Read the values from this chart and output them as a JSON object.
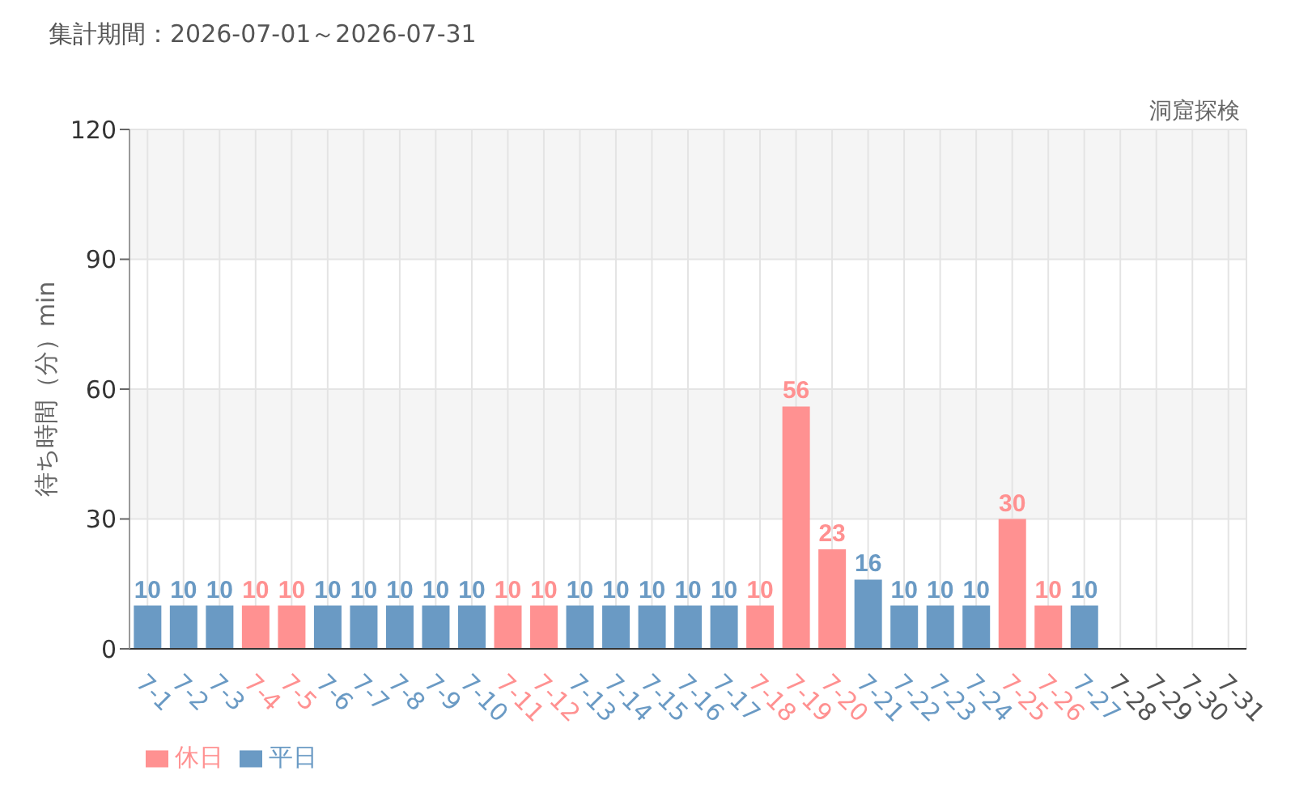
{
  "chart_data": {
    "type": "bar",
    "title": "集計期間：2026-07-01～2026-07-31",
    "subtitle": "洞窟探検",
    "ylabel": "待ち時間（分）min",
    "categories": [
      "7-1",
      "7-2",
      "7-3",
      "7-4",
      "7-5",
      "7-6",
      "7-7",
      "7-8",
      "7-9",
      "7-10",
      "7-11",
      "7-12",
      "7-13",
      "7-14",
      "7-15",
      "7-16",
      "7-17",
      "7-18",
      "7-19",
      "7-20",
      "7-21",
      "7-22",
      "7-23",
      "7-24",
      "7-25",
      "7-26",
      "7-27",
      "7-28",
      "7-29",
      "7-30",
      "7-31"
    ],
    "series": [
      {
        "name": "平日",
        "color": "#6a9ac4",
        "values": [
          10,
          10,
          10,
          null,
          null,
          10,
          10,
          10,
          10,
          10,
          null,
          null,
          10,
          10,
          10,
          10,
          10,
          null,
          null,
          null,
          16,
          10,
          10,
          10,
          null,
          null,
          10,
          null,
          null,
          null,
          null
        ]
      },
      {
        "name": "休日",
        "color": "#ff9191",
        "values": [
          null,
          null,
          null,
          10,
          10,
          null,
          null,
          null,
          null,
          null,
          10,
          10,
          null,
          null,
          null,
          null,
          null,
          10,
          56,
          23,
          null,
          null,
          null,
          null,
          30,
          10,
          null,
          null,
          null,
          null,
          null
        ]
      }
    ],
    "stacked": true,
    "ylim": [
      0,
      120
    ],
    "yticks": [
      0,
      30,
      60,
      90,
      120
    ],
    "grid": true,
    "legend": "bottom left",
    "data_labels": true
  }
}
